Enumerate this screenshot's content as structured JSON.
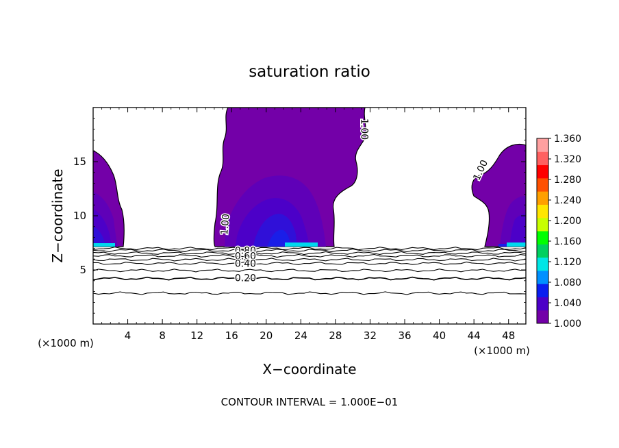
{
  "chart_data": {
    "type": "contour",
    "title": "saturation ratio",
    "xlabel": "X−coordinate",
    "ylabel": "Z−coordinate",
    "x_unit_left": "(×1000 m)",
    "x_unit_right": "(×1000 m)",
    "footer": "CONTOUR INTERVAL = 1.000E−01",
    "xlim": [
      0,
      50
    ],
    "ylim": [
      0,
      20
    ],
    "x_ticks": [
      4,
      8,
      12,
      16,
      20,
      24,
      28,
      32,
      36,
      40,
      44,
      48
    ],
    "y_ticks": [
      5,
      10,
      15
    ],
    "x_tick_labels": [
      "4",
      "8",
      "12",
      "16",
      "20",
      "24",
      "28",
      "32",
      "36",
      "40",
      "44",
      "48"
    ],
    "y_tick_labels": [
      "5",
      "10",
      "15"
    ],
    "contour_labels": [
      {
        "text": "1.00",
        "x": 15.3,
        "z": 9.2,
        "angle": -85
      },
      {
        "text": "1.00",
        "x": 31.3,
        "z": 18.0,
        "angle": 90
      },
      {
        "text": "1.00",
        "x": 44.8,
        "z": 14.2,
        "angle": -65
      },
      {
        "text": "0.80",
        "x": 17.6,
        "z": 6.75,
        "angle": 0
      },
      {
        "text": "0.60",
        "x": 17.6,
        "z": 6.25,
        "angle": 0
      },
      {
        "text": "0.40",
        "x": 17.6,
        "z": 5.55,
        "angle": 0
      },
      {
        "text": "0.20",
        "x": 17.6,
        "z": 4.2,
        "angle": 0
      }
    ],
    "contour_levels_below": [
      {
        "level": 0.1,
        "z": 2.85
      },
      {
        "level": 0.2,
        "z": 4.2
      },
      {
        "level": 0.3,
        "z": 4.95
      },
      {
        "level": 0.4,
        "z": 5.6
      },
      {
        "level": 0.5,
        "z": 5.95
      },
      {
        "level": 0.6,
        "z": 6.3
      },
      {
        "level": 0.7,
        "z": 6.55
      },
      {
        "level": 0.8,
        "z": 6.8
      },
      {
        "level": 0.9,
        "z": 6.98
      }
    ],
    "colorbar": {
      "min": 1.0,
      "max": 1.36,
      "tick_labels": [
        "1.000",
        "1.040",
        "1.080",
        "1.120",
        "1.160",
        "1.200",
        "1.240",
        "1.280",
        "1.320",
        "1.360"
      ],
      "colors": [
        "#7300a8",
        "#4c00c8",
        "#0a1ef0",
        "#0090ff",
        "#00e6e6",
        "#00d060",
        "#00ff00",
        "#c8ff00",
        "#ffe600",
        "#ffa000",
        "#ff5000",
        "#ff0000",
        "#ff6060",
        "#ffa0a0"
      ]
    },
    "saturated_regions": [
      {
        "name": "left",
        "x_range": [
          0,
          4.5
        ],
        "z_range": [
          7.0,
          16.0
        ]
      },
      {
        "name": "center",
        "x_range": [
          15.0,
          31.5
        ],
        "z_range": [
          7.0,
          20.0
        ]
      },
      {
        "name": "right",
        "x_range": [
          43.7,
          50
        ],
        "z_range": [
          7.0,
          16.5
        ]
      }
    ]
  }
}
